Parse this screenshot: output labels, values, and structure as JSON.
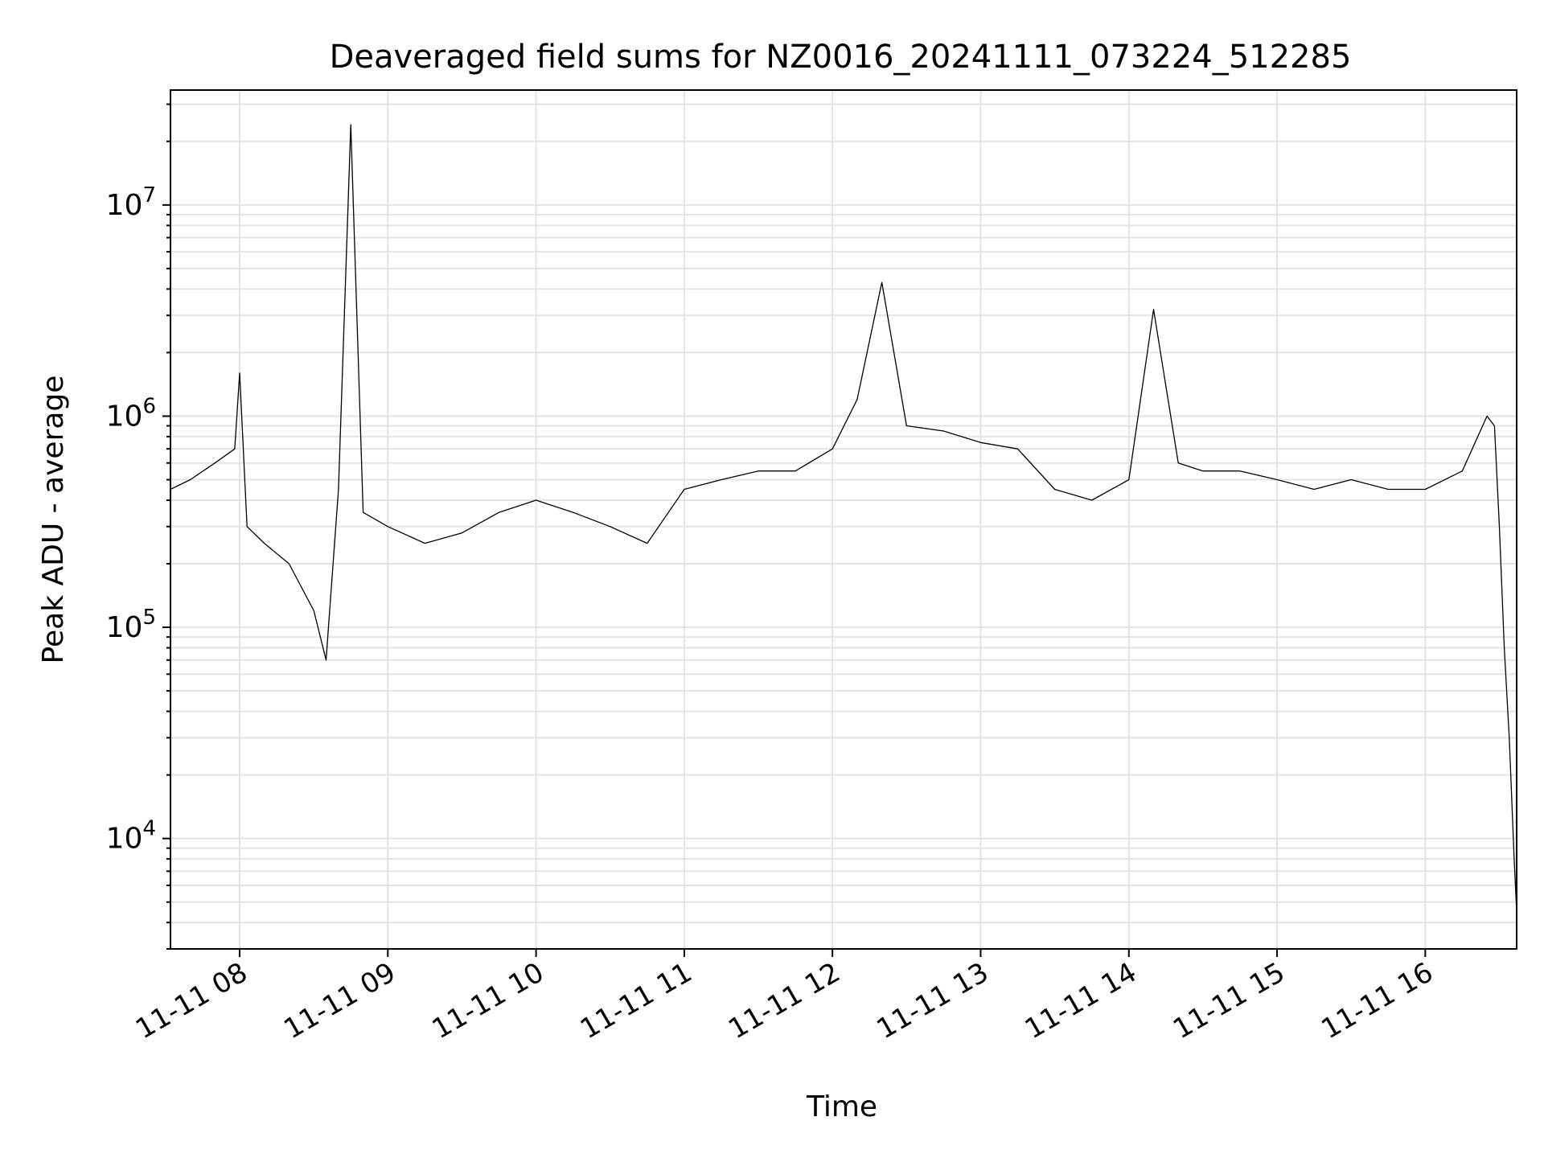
{
  "chart_data": {
    "type": "line",
    "title": "Deaveraged field sums for NZ0016_20241111_073224_512285",
    "xlabel": "Time",
    "ylabel": "Peak ADU - average",
    "xscale": "time",
    "yscale": "log",
    "xlim": [
      "11-11 07:32",
      "11-11 16:37"
    ],
    "ylim": [
      3000,
      35000000
    ],
    "grid": true,
    "x_tick_labels": [
      "11-11 08",
      "11-11 09",
      "11-11 10",
      "11-11 11",
      "11-11 12",
      "11-11 13",
      "11-11 14",
      "11-11 15",
      "11-11 16"
    ],
    "y_tick_labels": [
      {
        "base": "10",
        "exp": "4",
        "value": 10000
      },
      {
        "base": "10",
        "exp": "5",
        "value": 100000
      },
      {
        "base": "10",
        "exp": "6",
        "value": 1000000
      },
      {
        "base": "10",
        "exp": "7",
        "value": 10000000
      }
    ],
    "line_color": "#000000",
    "series": [
      {
        "x": [
          "11-11 07:32",
          "11-11 07:40",
          "11-11 07:50",
          "11-11 07:58",
          "11-11 08:00",
          "11-11 08:03",
          "11-11 08:10",
          "11-11 08:20",
          "11-11 08:30",
          "11-11 08:35",
          "11-11 08:40",
          "11-11 08:45",
          "11-11 08:50",
          "11-11 09:00",
          "11-11 09:15",
          "11-11 09:30",
          "11-11 09:45",
          "11-11 10:00",
          "11-11 10:15",
          "11-11 10:30",
          "11-11 10:45",
          "11-11 11:00",
          "11-11 11:15",
          "11-11 11:30",
          "11-11 11:45",
          "11-11 12:00",
          "11-11 12:10",
          "11-11 12:20",
          "11-11 12:30",
          "11-11 12:45",
          "11-11 13:00",
          "11-11 13:15",
          "11-11 13:30",
          "11-11 13:45",
          "11-11 14:00",
          "11-11 14:10",
          "11-11 14:20",
          "11-11 14:30",
          "11-11 14:45",
          "11-11 15:00",
          "11-11 15:15",
          "11-11 15:30",
          "11-11 15:45",
          "11-11 16:00",
          "11-11 16:15",
          "11-11 16:25",
          "11-11 16:28",
          "11-11 16:30",
          "11-11 16:32",
          "11-11 16:34",
          "11-11 16:36",
          "11-11 16:37"
        ],
        "values": [
          450000,
          500000,
          600000,
          700000,
          1600000,
          300000,
          250000,
          200000,
          120000,
          70000,
          450000,
          24000000,
          350000,
          300000,
          250000,
          280000,
          350000,
          400000,
          350000,
          300000,
          250000,
          450000,
          500000,
          550000,
          550000,
          700000,
          1200000,
          4300000,
          900000,
          850000,
          750000,
          700000,
          450000,
          400000,
          500000,
          3200000,
          600000,
          550000,
          550000,
          500000,
          450000,
          500000,
          450000,
          450000,
          550000,
          1000000,
          900000,
          300000,
          80000,
          30000,
          8000,
          4500
        ]
      }
    ]
  }
}
